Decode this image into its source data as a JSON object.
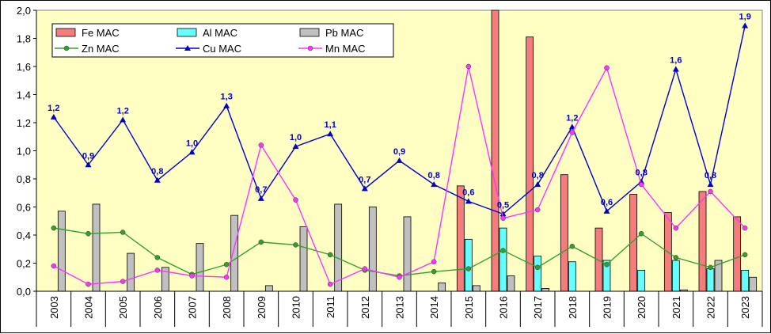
{
  "chart_data": {
    "type": "bar",
    "categories": [
      "2003",
      "2004",
      "2005",
      "2006",
      "2007",
      "2008",
      "2009",
      "2010",
      "2011",
      "2012",
      "2013",
      "2014",
      "2015",
      "2016",
      "2017",
      "2018",
      "2019",
      "2020",
      "2021",
      "2022",
      "2023"
    ],
    "ylim": [
      0,
      2.0
    ],
    "yticks": [
      "0,0",
      "0,2",
      "0,4",
      "0,6",
      "0,8",
      "1,0",
      "1,2",
      "1,4",
      "1,6",
      "1,8",
      "2,0"
    ],
    "grid": false,
    "legend_position": "top-left",
    "plot_background": "#ffffc4",
    "series": [
      {
        "name": "Fe MAC",
        "kind": "bar",
        "color": "#f47c7c",
        "values": [
          0,
          0,
          0,
          0,
          0,
          0,
          0,
          0,
          0,
          0,
          0,
          0,
          0.75,
          2.0,
          1.81,
          0.83,
          0.45,
          0.69,
          0.56,
          0.71,
          0.53
        ]
      },
      {
        "name": "Al MAC",
        "kind": "bar",
        "color": "#66ffff",
        "values": [
          0,
          0,
          0,
          0,
          0,
          0,
          0,
          0,
          0,
          0,
          0,
          0,
          0.37,
          0.45,
          0.25,
          0.21,
          0.22,
          0.15,
          0.22,
          0.16,
          0.15
        ]
      },
      {
        "name": "Pb MAC",
        "kind": "bar",
        "color": "#c0c0c0",
        "values": [
          0.57,
          0.62,
          0.27,
          0.17,
          0.34,
          0.54,
          0.04,
          0.46,
          0.62,
          0.6,
          0.53,
          0.06,
          0.04,
          0.11,
          0.02,
          0,
          0,
          0,
          0.01,
          0.22,
          0.1
        ]
      },
      {
        "name": "Zn MAC",
        "kind": "line",
        "color": "#33a02c",
        "values": [
          0.45,
          0.41,
          0.42,
          0.24,
          0.12,
          0.19,
          0.35,
          0.33,
          0.26,
          0.15,
          0.11,
          0.14,
          0.16,
          0.29,
          0.17,
          0.32,
          0.19,
          0.41,
          0.24,
          0.17,
          0.26
        ]
      },
      {
        "name": "Cu MAC",
        "kind": "line",
        "color": "#0000cc",
        "values": [
          1.24,
          0.9,
          1.22,
          0.79,
          0.99,
          1.32,
          0.66,
          1.03,
          1.12,
          0.73,
          0.93,
          0.76,
          0.64,
          0.55,
          0.76,
          1.17,
          0.57,
          0.78,
          1.58,
          0.76,
          1.89
        ]
      },
      {
        "name": "Mn MAC",
        "kind": "line",
        "color": "#ff33ff",
        "values": [
          0.18,
          0.05,
          0.07,
          0.15,
          0.11,
          0.1,
          1.04,
          0.65,
          0.05,
          0.16,
          0.1,
          0.21,
          1.6,
          0.52,
          0.58,
          1.13,
          1.59,
          0.76,
          0.45,
          0.71,
          0.45
        ]
      }
    ],
    "data_labels": {
      "series": "Cu MAC",
      "color": "#0000cc",
      "labels": [
        "1,2",
        "0,9",
        "1,2",
        "0,8",
        "1,0",
        "1,3",
        "0,7",
        "1,0",
        "1,1",
        "0,7",
        "0,9",
        "0,8",
        "0,6",
        "0,5",
        "0,8",
        "1,2",
        "0,6",
        "0,8",
        "1,6",
        "0,8",
        "1,9"
      ]
    }
  }
}
